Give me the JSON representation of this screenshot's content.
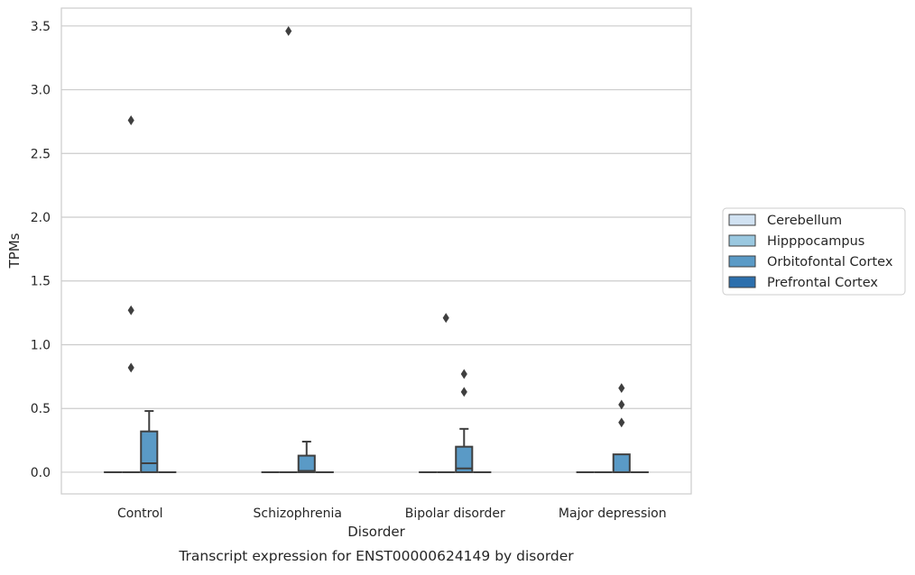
{
  "chart_data": {
    "type": "box",
    "caption": "Transcript expression for ENST00000624149 by disorder",
    "xlabel": "Disorder",
    "ylabel": "TPMs",
    "ylim": [
      -0.17,
      3.64
    ],
    "yticks": [
      0.0,
      0.5,
      1.0,
      1.5,
      2.0,
      2.5,
      3.0,
      3.5
    ],
    "ytick_labels": [
      "0.0",
      "0.5",
      "1.0",
      "1.5",
      "2.0",
      "2.5",
      "3.0",
      "3.5"
    ],
    "grid": true,
    "legend_position": "center-right",
    "categories": [
      "Control",
      "Schizophrenia",
      "Bipolar disorder",
      "Major depression"
    ],
    "series": [
      {
        "name": "Cerebellum",
        "color": "#d1e2f2",
        "boxes": [
          {
            "whisker_low": 0,
            "q1": 0,
            "median": 0,
            "q3": 0,
            "whisker_high": 0,
            "outliers": []
          },
          {
            "whisker_low": 0,
            "q1": 0,
            "median": 0,
            "q3": 0,
            "whisker_high": 0,
            "outliers": []
          },
          {
            "whisker_low": 0,
            "q1": 0,
            "median": 0,
            "q3": 0,
            "whisker_high": 0,
            "outliers": []
          },
          {
            "whisker_low": 0,
            "q1": 0,
            "median": 0,
            "q3": 0,
            "whisker_high": 0,
            "outliers": []
          }
        ]
      },
      {
        "name": "Hipppocampus",
        "color": "#9ac8e0",
        "boxes": [
          {
            "whisker_low": 0,
            "q1": 0,
            "median": 0,
            "q3": 0,
            "whisker_high": 0,
            "outliers": [
              2.76,
              1.27,
              0.82
            ]
          },
          {
            "whisker_low": 0,
            "q1": 0,
            "median": 0,
            "q3": 0,
            "whisker_high": 0,
            "outliers": [
              3.46
            ]
          },
          {
            "whisker_low": 0,
            "q1": 0,
            "median": 0,
            "q3": 0,
            "whisker_high": 0,
            "outliers": [
              1.21
            ]
          },
          {
            "whisker_low": 0,
            "q1": 0,
            "median": 0,
            "q3": 0,
            "whisker_high": 0,
            "outliers": []
          }
        ]
      },
      {
        "name": "Orbitofontal Cortex",
        "color": "#5a9ac6",
        "boxes": [
          {
            "whisker_low": 0,
            "q1": 0,
            "median": 0.07,
            "q3": 0.32,
            "whisker_high": 0.48,
            "outliers": []
          },
          {
            "whisker_low": 0,
            "q1": 0,
            "median": 0.01,
            "q3": 0.13,
            "whisker_high": 0.24,
            "outliers": []
          },
          {
            "whisker_low": 0,
            "q1": 0,
            "median": 0.03,
            "q3": 0.2,
            "whisker_high": 0.34,
            "outliers": [
              0.77,
              0.63
            ]
          },
          {
            "whisker_low": 0,
            "q1": 0,
            "median": 0,
            "q3": 0.14,
            "whisker_high": 0.14,
            "outliers": [
              0.66,
              0.53,
              0.39
            ]
          }
        ]
      },
      {
        "name": "Prefrontal Cortex",
        "color": "#2c6fad",
        "boxes": [
          {
            "whisker_low": 0,
            "q1": 0,
            "median": 0,
            "q3": 0,
            "whisker_high": 0,
            "outliers": []
          },
          {
            "whisker_low": 0,
            "q1": 0,
            "median": 0,
            "q3": 0,
            "whisker_high": 0,
            "outliers": []
          },
          {
            "whisker_low": 0,
            "q1": 0,
            "median": 0,
            "q3": 0,
            "whisker_high": 0,
            "outliers": []
          },
          {
            "whisker_low": 0,
            "q1": 0,
            "median": 0,
            "q3": 0,
            "whisker_high": 0,
            "outliers": []
          }
        ]
      }
    ]
  }
}
